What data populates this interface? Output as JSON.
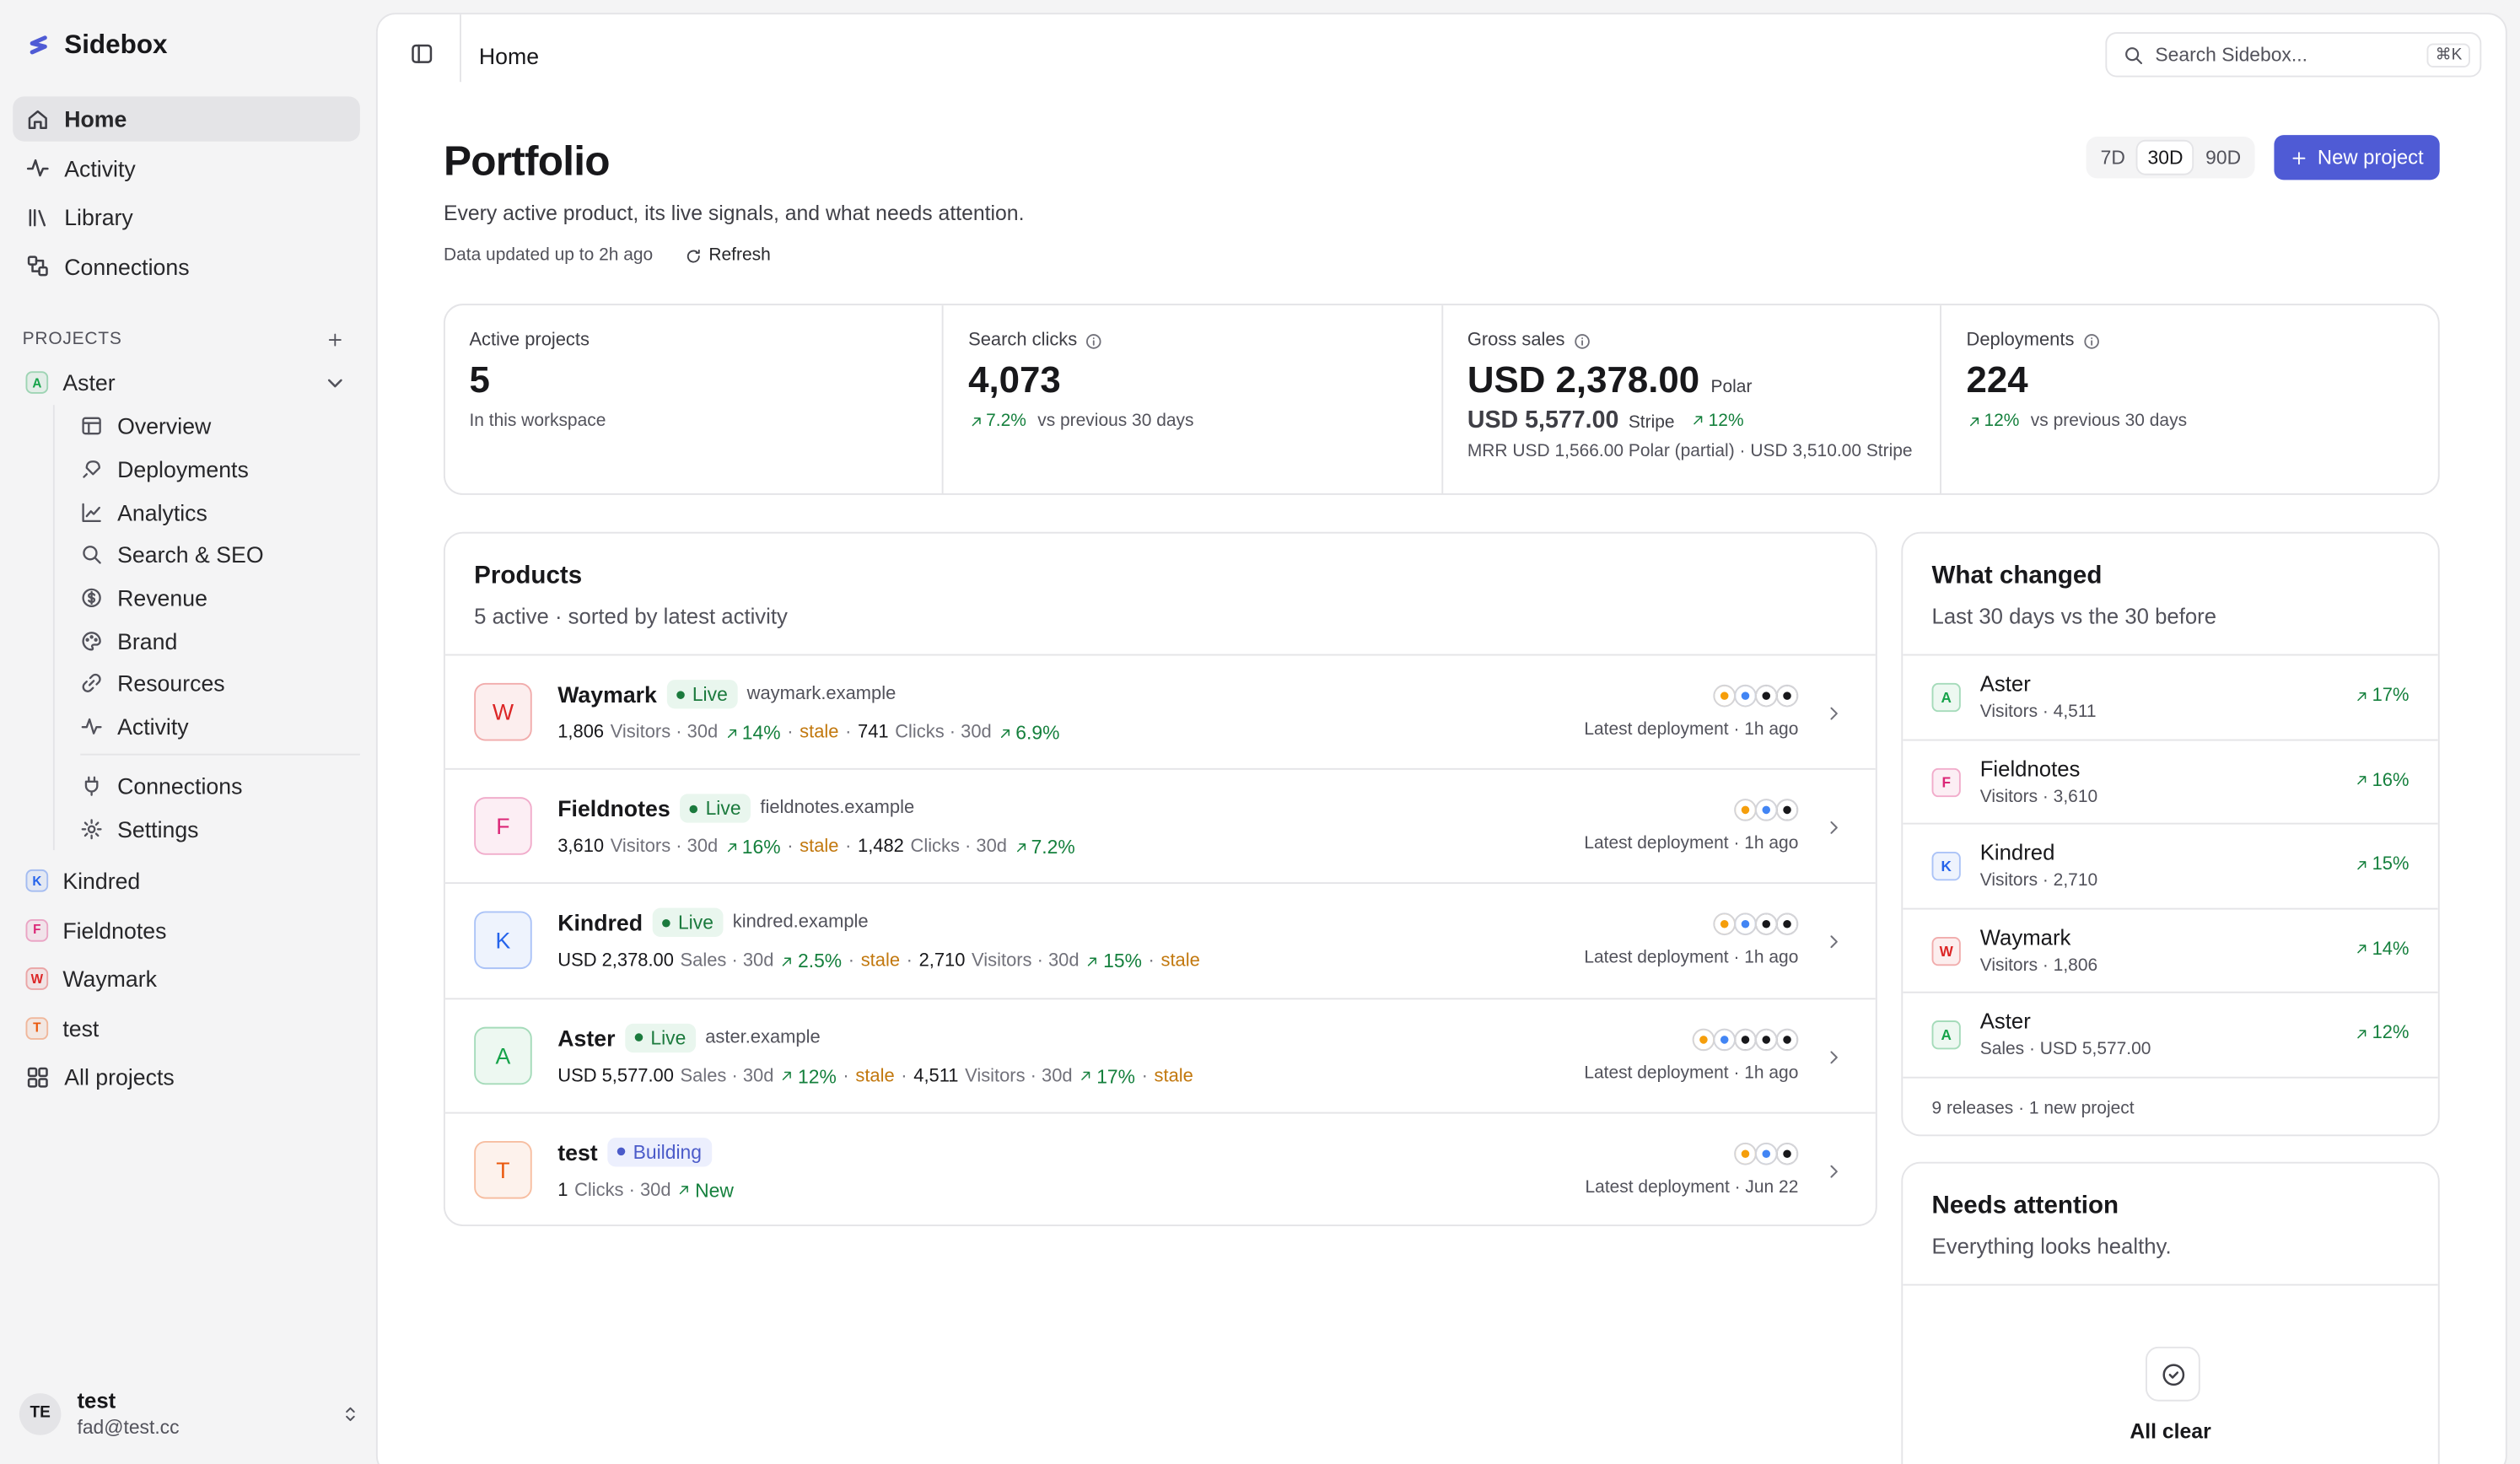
{
  "sidebar": {
    "brand": "Sidebox",
    "nav": [
      "Home",
      "Activity",
      "Library",
      "Connections"
    ],
    "projects_label": "PROJECTS",
    "open_project": {
      "initial": "A",
      "name": "Aster",
      "color": "#16a34a",
      "subnav": [
        "Overview",
        "Deployments",
        "Analytics",
        "Search & SEO",
        "Revenue",
        "Brand",
        "Resources",
        "Activity"
      ],
      "subnav_extra": [
        "Connections",
        "Settings"
      ]
    },
    "projects": [
      {
        "initial": "K",
        "name": "Kindred",
        "color": "#2563eb"
      },
      {
        "initial": "F",
        "name": "Fieldnotes",
        "color": "#db2777"
      },
      {
        "initial": "W",
        "name": "Waymark",
        "color": "#dc2626"
      },
      {
        "initial": "T",
        "name": "test",
        "color": "#ea580c"
      }
    ],
    "all_projects": "All projects",
    "user": {
      "initials": "TE",
      "name": "test",
      "email": "fad@test.cc"
    }
  },
  "topbar": {
    "title": "Home",
    "search": "Search Sidebox...",
    "shortcut": "⌘K"
  },
  "header": {
    "title": "Portfolio",
    "subtitle": "Every active product, its live signals, and what needs attention.",
    "updated": "Data updated up to 2h ago",
    "refresh": "Refresh",
    "ranges": [
      "7D",
      "30D",
      "90D"
    ],
    "selected_range": 1,
    "new_project": "New project"
  },
  "stats": [
    {
      "label": "Active projects",
      "value": "5",
      "note": "In this workspace"
    },
    {
      "label": "Search clicks",
      "value": "4,073",
      "delta": "7.2%",
      "note": "vs previous 30 days"
    },
    {
      "label": "Gross sales",
      "value": "USD 2,378.00",
      "source": "Polar",
      "secondary": "USD 5,577.00",
      "secondary_source": "Stripe",
      "delta": "12%",
      "note": "MRR USD 1,566.00 Polar (partial) · USD 3,510.00 Stripe"
    },
    {
      "label": "Deployments",
      "value": "224",
      "delta": "12%",
      "note": "vs previous 30 days"
    }
  ],
  "products": {
    "title": "Products",
    "subtitle": "5 active · sorted by latest activity",
    "rows": [
      {
        "initial": "W",
        "name": "Waymark",
        "color": "#dc2626",
        "status": "Live",
        "domain": "waymark.example",
        "metrics": [
          {
            "value": "1,806",
            "unit": "Visitors · 30d",
            "delta": "14%",
            "flag": "stale"
          },
          {
            "value": "741",
            "unit": "Clicks · 30d",
            "delta": "6.9%"
          }
        ],
        "deployment": "Latest deployment · 1h ago"
      },
      {
        "initial": "F",
        "name": "Fieldnotes",
        "color": "#db2777",
        "status": "Live",
        "domain": "fieldnotes.example",
        "metrics": [
          {
            "value": "3,610",
            "unit": "Visitors · 30d",
            "delta": "16%",
            "flag": "stale"
          },
          {
            "value": "1,482",
            "unit": "Clicks · 30d",
            "delta": "7.2%"
          }
        ],
        "deployment": "Latest deployment · 1h ago"
      },
      {
        "initial": "K",
        "name": "Kindred",
        "color": "#2563eb",
        "status": "Live",
        "domain": "kindred.example",
        "metrics": [
          {
            "value": "USD 2,378.00",
            "unit": "Sales · 30d",
            "delta": "2.5%",
            "flag": "stale"
          },
          {
            "value": "2,710",
            "unit": "Visitors · 30d",
            "delta": "15%",
            "flag": "stale"
          }
        ],
        "deployment": "Latest deployment · 1h ago"
      },
      {
        "initial": "A",
        "name": "Aster",
        "color": "#16a34a",
        "status": "Live",
        "domain": "aster.example",
        "metrics": [
          {
            "value": "USD 5,577.00",
            "unit": "Sales · 30d",
            "delta": "12%",
            "flag": "stale"
          },
          {
            "value": "4,511",
            "unit": "Visitors · 30d",
            "delta": "17%",
            "flag": "stale"
          }
        ],
        "deployment": "Latest deployment · 1h ago"
      },
      {
        "initial": "T",
        "name": "test",
        "color": "#ea580c",
        "status": "Building",
        "metrics": [
          {
            "value": "1",
            "unit": "Clicks · 30d",
            "delta": "New"
          }
        ],
        "deployment": "Latest deployment · Jun 22"
      }
    ]
  },
  "what_changed": {
    "title": "What changed",
    "subtitle": "Last 30 days vs the 30 before",
    "items": [
      {
        "initial": "A",
        "name": "Aster",
        "color": "#16a34a",
        "detail": "Visitors · 4,511",
        "delta": "17%"
      },
      {
        "initial": "F",
        "name": "Fieldnotes",
        "color": "#db2777",
        "detail": "Visitors · 3,610",
        "delta": "16%"
      },
      {
        "initial": "K",
        "name": "Kindred",
        "color": "#2563eb",
        "detail": "Visitors · 2,710",
        "delta": "15%"
      },
      {
        "initial": "W",
        "name": "Waymark",
        "color": "#dc2626",
        "detail": "Visitors · 1,806",
        "delta": "14%"
      },
      {
        "initial": "A",
        "name": "Aster",
        "color": "#16a34a",
        "detail": "Sales · USD 5,577.00",
        "delta": "12%"
      }
    ],
    "footer": "9 releases · 1 new project"
  },
  "needs_attention": {
    "title": "Needs attention",
    "subtitle": "Everything looks healthy.",
    "status": "All clear"
  }
}
